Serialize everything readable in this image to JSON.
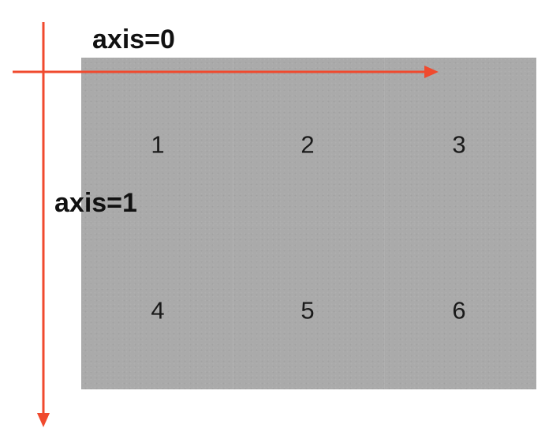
{
  "labels": {
    "axis_0": "axis=0",
    "axis_1": "axis=1"
  },
  "matrix": {
    "rows": [
      [
        "1",
        "2",
        "3"
      ],
      [
        "4",
        "5",
        "6"
      ]
    ]
  },
  "colors": {
    "arrow": "#f04a2e",
    "panel": "#aaaaaa",
    "text": "#111111"
  }
}
